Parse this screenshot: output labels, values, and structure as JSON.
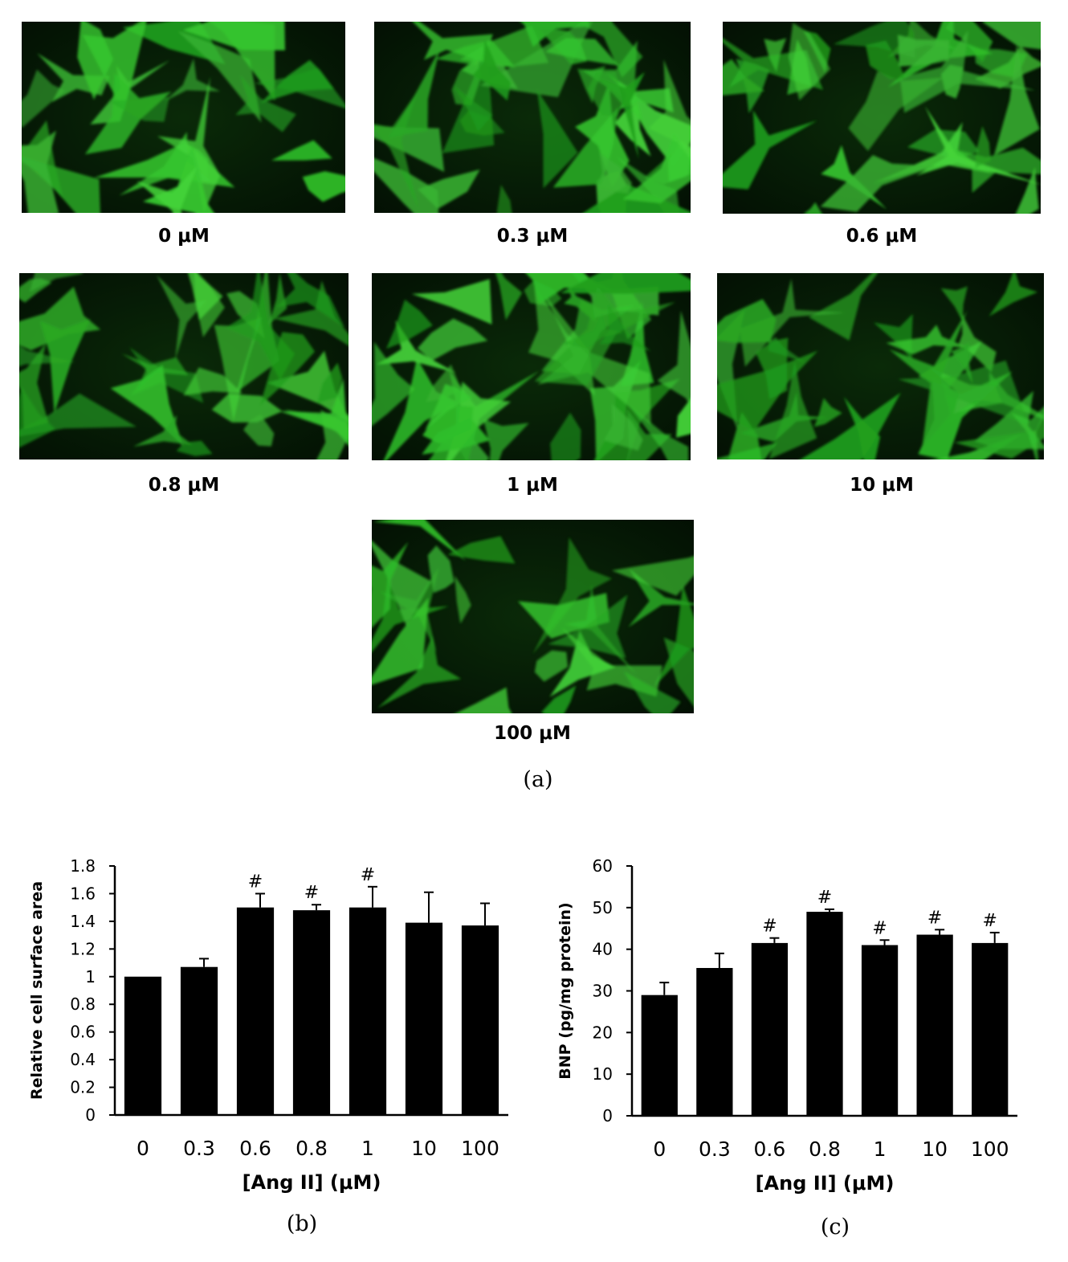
{
  "panel_a": {
    "label": "(a)",
    "images": [
      {
        "label": "0 μM",
        "seed": 1,
        "density": 26
      },
      {
        "label": "0.3 μM",
        "seed": 2,
        "density": 38
      },
      {
        "label": "0.6 μM",
        "seed": 3,
        "density": 30
      },
      {
        "label": "0.8 μM",
        "seed": 4,
        "density": 32
      },
      {
        "label": "1 μM",
        "seed": 5,
        "density": 36
      },
      {
        "label": "10 μM",
        "seed": 6,
        "density": 30
      },
      {
        "label": "100 μM",
        "seed": 7,
        "density": 24
      }
    ]
  },
  "chart_data": [
    {
      "panel": "(b)",
      "type": "bar",
      "title": "",
      "xlabel": "[Ang II] (μM)",
      "ylabel": "Relative cell surface area",
      "categories": [
        "0",
        "0.3",
        "0.6",
        "0.8",
        "1",
        "10",
        "100"
      ],
      "values": [
        1.0,
        1.07,
        1.5,
        1.48,
        1.5,
        1.39,
        1.37
      ],
      "errors": [
        0.0,
        0.06,
        0.1,
        0.04,
        0.15,
        0.22,
        0.16
      ],
      "annotations": [
        "",
        "",
        "#",
        "#",
        "#",
        "",
        ""
      ],
      "ylim": [
        0,
        1.8
      ],
      "yticks": [
        "0",
        "0.2",
        "0.4",
        "0.6",
        "0.8",
        "1",
        "1.2",
        "1.4",
        "1.6",
        "1.8"
      ],
      "bar_color": "#000000",
      "grid": false
    },
    {
      "panel": "(c)",
      "type": "bar",
      "title": "",
      "xlabel": "[Ang II] (μM)",
      "ylabel": "BNP (pg/mg protein)",
      "categories": [
        "0",
        "0.3",
        "0.6",
        "0.8",
        "1",
        "10",
        "100"
      ],
      "values": [
        29,
        35.5,
        41.5,
        49,
        41,
        43.5,
        41.5
      ],
      "errors": [
        3,
        3.5,
        1.2,
        0.6,
        1.2,
        1.2,
        2.5
      ],
      "annotations": [
        "",
        "",
        "#",
        "#",
        "#",
        "#",
        "#"
      ],
      "ylim": [
        0,
        60
      ],
      "yticks": [
        "0",
        "10",
        "20",
        "30",
        "40",
        "50",
        "60"
      ],
      "bar_color": "#000000",
      "grid": false
    }
  ]
}
